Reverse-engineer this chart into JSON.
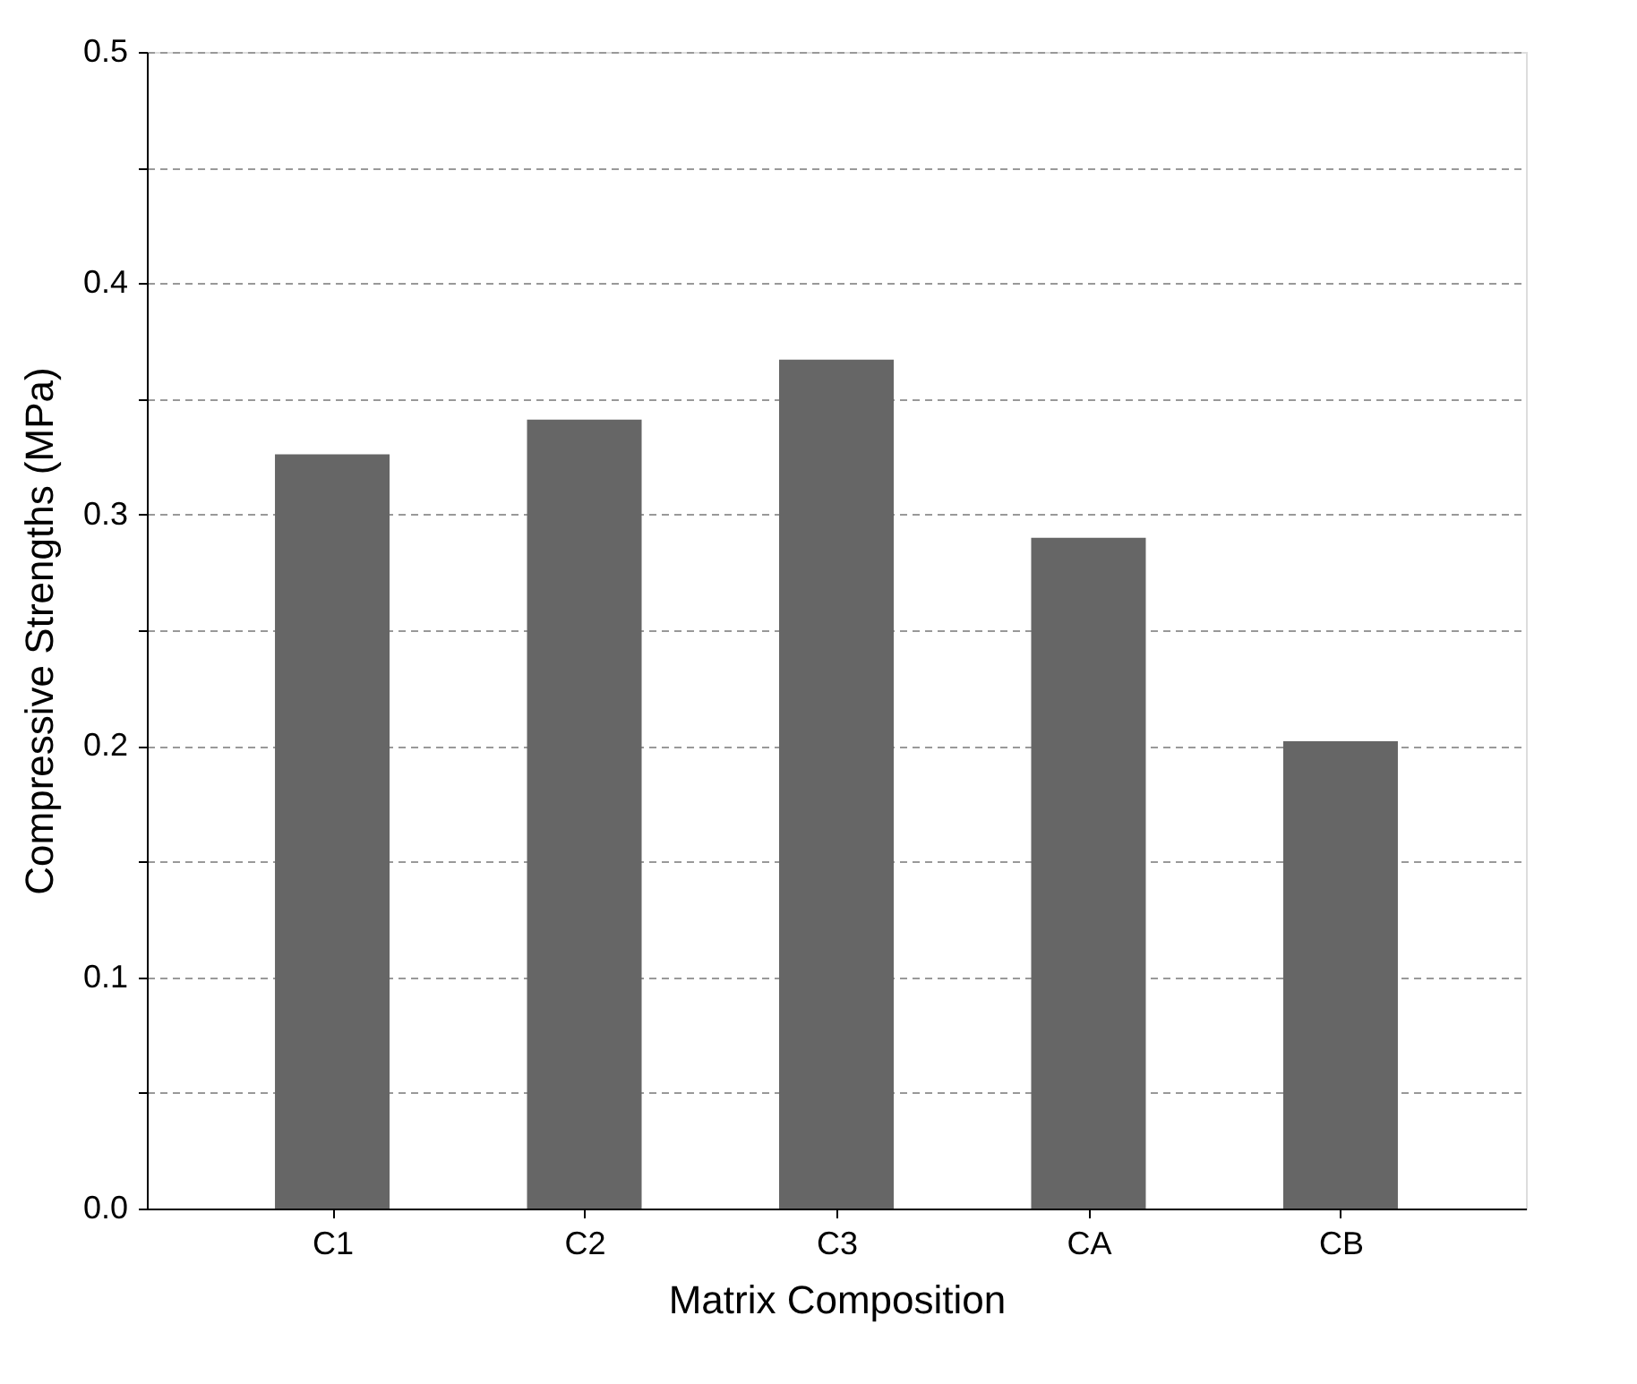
{
  "chart_data": {
    "type": "bar",
    "xlabel": "Matrix Composition",
    "ylabel": "Compressive Strengths (MPa)",
    "categories": [
      "C1",
      "C2",
      "C3",
      "CA",
      "CB"
    ],
    "values": [
      0.326,
      0.341,
      0.367,
      0.29,
      0.202
    ],
    "color": "#666666",
    "ylim": [
      0,
      0.5
    ],
    "yticks": [
      {
        "value": 0,
        "label": "0.0"
      },
      {
        "value": 0.05,
        "label": null
      },
      {
        "value": 0.1,
        "label": "0.1"
      },
      {
        "value": 0.15,
        "label": null
      },
      {
        "value": 0.2,
        "label": "0.2"
      },
      {
        "value": 0.25,
        "label": null
      },
      {
        "value": 0.3,
        "label": "0.3"
      },
      {
        "value": 0.35,
        "label": null
      },
      {
        "value": 0.4,
        "label": "0.4"
      },
      {
        "value": 0.45,
        "label": null
      },
      {
        "value": 0.5,
        "label": "0.5"
      }
    ],
    "grid": "y",
    "line_style": "dashed"
  }
}
